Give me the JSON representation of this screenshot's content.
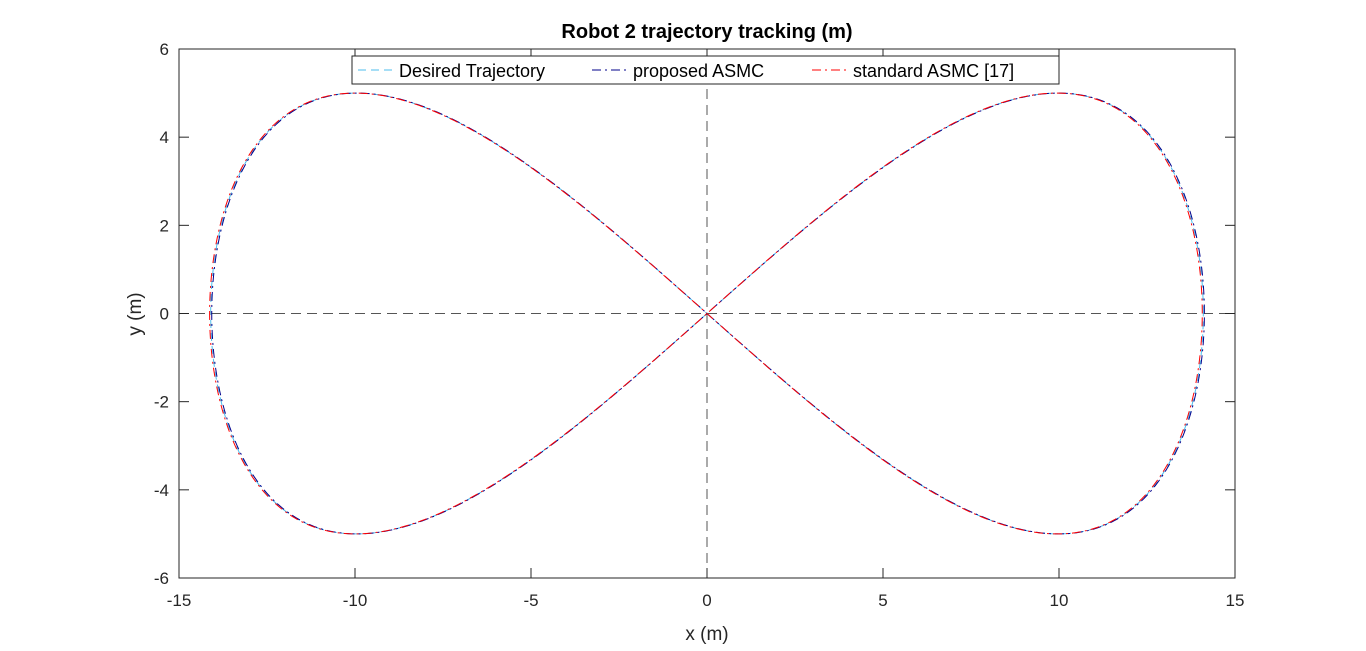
{
  "chart_data": {
    "type": "line",
    "title": "Robot 2 trajectory tracking (m)",
    "xlabel": "x (m)",
    "ylabel": "y (m)",
    "xlim": [
      -15,
      15
    ],
    "ylim": [
      -6,
      6
    ],
    "xticks": [
      -15,
      -10,
      -5,
      0,
      5,
      10,
      15
    ],
    "yticks": [
      -6,
      -4,
      -2,
      0,
      2,
      4,
      6
    ],
    "grid": false,
    "legend_position": "top-center",
    "reference_lines": {
      "x": 0,
      "y": 0,
      "style": "dashed",
      "color": "#555555"
    },
    "curve": {
      "shape": "lemniscate of Gerono",
      "x_amplitude": 14.1,
      "y_amplitude": 5.0
    },
    "series": [
      {
        "name": "Desired Trajectory",
        "color": "#4DBEEE",
        "dash": "dashed",
        "x_offset": 0.0
      },
      {
        "name": "proposed ASMC",
        "color": "#00008B",
        "dash": "dashdot",
        "x_offset": 0.03
      },
      {
        "name": "standard ASMC [17]",
        "color": "#FF0000",
        "dash": "dashdot",
        "x_offset": -0.03
      }
    ]
  }
}
